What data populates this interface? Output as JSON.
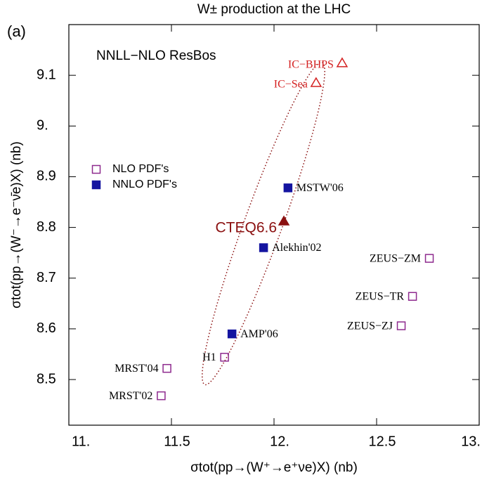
{
  "chart_data": {
    "type": "scatter",
    "title": "W± production at the LHC",
    "panel_label": "(a)",
    "subtitle": "NNLL−NLO ResBos",
    "x_label": "σtot(pp→(W⁺→e⁺νe)X) (nb)",
    "y_label": "σtot(pp→(W⁻→e⁻ν̄e)X) (nb)",
    "xlim": [
      11,
      13
    ],
    "ylim": [
      8.41,
      9.2
    ],
    "xticks": [
      {
        "value": 11,
        "label": "11."
      },
      11.5,
      {
        "value": 12,
        "label": "12."
      },
      12.5,
      {
        "value": 13,
        "label": "13."
      }
    ],
    "yticks": [
      8.5,
      8.6,
      8.7,
      8.8,
      8.9,
      {
        "value": 9,
        "label": "9."
      },
      9.1
    ],
    "series": [
      {
        "name": "NLO PDF's",
        "color": "#8e2a8e",
        "marker": "square-open",
        "labels": [
          "MRST'02",
          "MRST'04",
          "H1",
          "ZEUS−ZJ",
          "ZEUS−TR",
          "ZEUS−ZM"
        ],
        "x": [
          11.45,
          11.478,
          11.759,
          12.62,
          12.675,
          12.757
        ],
        "values": [
          8.468,
          8.522,
          8.544,
          8.606,
          8.664,
          8.739
        ]
      },
      {
        "name": "NNLO PDF's",
        "color": "#1414a0",
        "marker": "square-filled",
        "labels": [
          "AMP'06",
          "Alekhin'02",
          "MSTW'06"
        ],
        "x": [
          11.795,
          11.949,
          12.068
        ],
        "values": [
          8.59,
          8.76,
          8.878
        ]
      }
    ],
    "extra_points": [
      {
        "label": "CTEQ6.6",
        "color": "#8b1010",
        "marker": "triangle-filled",
        "x": 12.048,
        "y": 8.812
      },
      {
        "label": "IC−BHPS",
        "color": "#d42020",
        "marker": "triangle-open",
        "x": 12.332,
        "y": 9.124
      },
      {
        "label": "IC−Sea",
        "color": "#d42020",
        "marker": "triangle-open",
        "x": 12.205,
        "y": 9.085
      }
    ]
  }
}
